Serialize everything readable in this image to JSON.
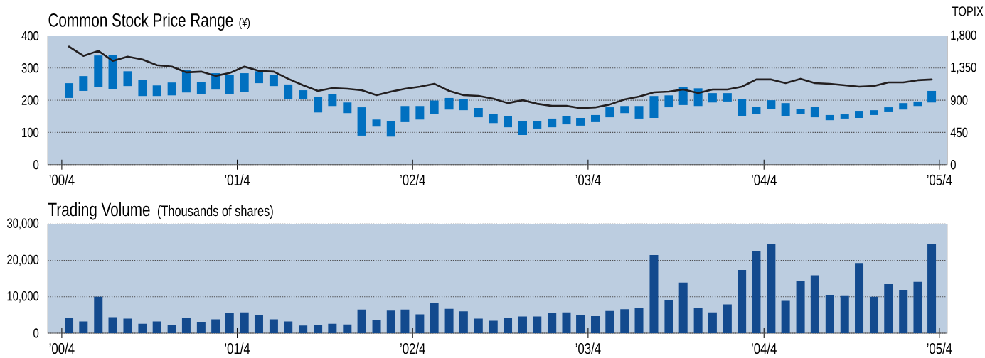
{
  "chart_data": [
    {
      "type": "bar",
      "title": "Common Stock Price Range",
      "ylabel": "(¥)",
      "y2label": "TOPIX",
      "x": [
        "2000-04-16",
        "2000-05-16",
        "2000-06-16",
        "2000-07-16",
        "2000-08-16",
        "2000-09-16",
        "2000-10-16",
        "2000-11-16",
        "2000-12-16",
        "2001-01-16",
        "2001-02-15",
        "2001-03-16",
        "2001-04-16",
        "2001-05-16",
        "2001-06-16",
        "2001-07-16",
        "2001-08-16",
        "2001-09-16",
        "2001-10-16",
        "2001-11-16",
        "2001-12-16",
        "2002-01-16",
        "2002-02-15",
        "2002-03-16",
        "2002-04-16",
        "2002-05-16",
        "2002-06-16",
        "2002-07-16",
        "2002-08-16",
        "2002-09-16",
        "2002-10-16",
        "2002-11-16",
        "2002-12-16",
        "2003-01-16",
        "2003-02-15",
        "2003-03-16",
        "2003-04-16",
        "2003-05-16",
        "2003-06-16",
        "2003-07-16",
        "2003-08-16",
        "2003-09-16",
        "2003-10-16",
        "2003-11-16",
        "2003-12-16",
        "2004-01-16",
        "2004-02-15",
        "2004-03-16",
        "2004-04-16",
        "2004-05-16",
        "2004-06-16",
        "2004-07-16",
        "2004-08-16",
        "2004-09-16",
        "2004-10-16",
        "2004-11-16",
        "2004-12-16",
        "2005-01-16",
        "2005-02-15",
        "2005-03-16"
      ],
      "xlim": [
        "2000-03-03",
        "2005-04-17"
      ],
      "xticks": [
        {
          "value": "2000-04-01",
          "label": "’00/4"
        },
        {
          "value": "2001-04-01",
          "label": "’01/4"
        },
        {
          "value": "2002-04-01",
          "label": "’02/4"
        },
        {
          "value": "2003-04-01",
          "label": "’03/4"
        },
        {
          "value": "2004-04-01",
          "label": "’04/4"
        },
        {
          "value": "2005-04-01",
          "label": "’05/4"
        }
      ],
      "ylim": [
        0,
        400
      ],
      "yticks": [
        0,
        100,
        200,
        300,
        400
      ],
      "y2lim": [
        0,
        1800
      ],
      "y2ticks": [
        0,
        450,
        900,
        {
          "value": 1350,
          "label": "1,350"
        },
        {
          "value": 1800,
          "label": "1,800"
        }
      ],
      "grid": "y",
      "series": [
        {
          "type": "bar",
          "color": "#0070c0",
          "base": [
            207,
            229,
            240,
            235,
            244,
            213,
            213,
            215,
            224,
            220,
            233,
            220,
            226,
            253,
            244,
            204,
            204,
            162,
            182,
            160,
            90,
            118,
            87,
            132,
            140,
            158,
            171,
            169,
            147,
            129,
            116,
            92,
            112,
            116,
            125,
            121,
            132,
            147,
            160,
            143,
            145,
            178,
            185,
            182,
            193,
            196,
            151,
            156,
            173,
            151,
            156,
            147,
            138,
            143,
            145,
            154,
            165,
            171,
            182,
            193
          ],
          "values": [
            46,
            46,
            99,
            106,
            46,
            51,
            33,
            40,
            69,
            37,
            51,
            59,
            58,
            37,
            35,
            45,
            27,
            47,
            36,
            33,
            88,
            22,
            49,
            50,
            42,
            41,
            36,
            35,
            29,
            29,
            35,
            42,
            22,
            27,
            26,
            24,
            22,
            31,
            22,
            39,
            68,
            37,
            57,
            55,
            29,
            26,
            53,
            24,
            27,
            40,
            17,
            33,
            16,
            13,
            22,
            15,
            13,
            20,
            14,
            36
          ]
        },
        {
          "type": "line",
          "axis": "y2",
          "color": "#231f20",
          "values": [
            1650,
            1520,
            1590,
            1450,
            1510,
            1470,
            1390,
            1370,
            1290,
            1300,
            1240,
            1280,
            1370,
            1310,
            1300,
            1200,
            1110,
            1030,
            1070,
            1060,
            1040,
            970,
            1020,
            1060,
            1090,
            1130,
            1030,
            970,
            960,
            920,
            860,
            900,
            850,
            820,
            820,
            790,
            800,
            840,
            910,
            950,
            1010,
            1020,
            1050,
            1000,
            1050,
            1050,
            1090,
            1190,
            1190,
            1140,
            1200,
            1140,
            1130,
            1110,
            1090,
            1100,
            1150,
            1150,
            1180,
            1190
          ]
        }
      ]
    },
    {
      "type": "bar",
      "title": "Trading Volume",
      "ylabel": "(Thousands of shares)",
      "x": [
        "2000-04-16",
        "2000-05-16",
        "2000-06-16",
        "2000-07-16",
        "2000-08-16",
        "2000-09-16",
        "2000-10-16",
        "2000-11-16",
        "2000-12-16",
        "2001-01-16",
        "2001-02-15",
        "2001-03-16",
        "2001-04-16",
        "2001-05-16",
        "2001-06-16",
        "2001-07-16",
        "2001-08-16",
        "2001-09-16",
        "2001-10-16",
        "2001-11-16",
        "2001-12-16",
        "2002-01-16",
        "2002-02-15",
        "2002-03-16",
        "2002-04-16",
        "2002-05-16",
        "2002-06-16",
        "2002-07-16",
        "2002-08-16",
        "2002-09-16",
        "2002-10-16",
        "2002-11-16",
        "2002-12-16",
        "2003-01-16",
        "2003-02-15",
        "2003-03-16",
        "2003-04-16",
        "2003-05-16",
        "2003-06-16",
        "2003-07-16",
        "2003-08-16",
        "2003-09-16",
        "2003-10-16",
        "2003-11-16",
        "2003-12-16",
        "2004-01-16",
        "2004-02-15",
        "2004-03-16",
        "2004-04-16",
        "2004-05-16",
        "2004-06-16",
        "2004-07-16",
        "2004-08-16",
        "2004-09-16",
        "2004-10-16",
        "2004-11-16",
        "2004-12-16",
        "2005-01-16",
        "2005-02-15",
        "2005-03-16"
      ],
      "xlim": [
        "2000-03-03",
        "2005-04-17"
      ],
      "xticks": [
        {
          "value": "2000-04-01",
          "label": "’00/4"
        },
        {
          "value": "2001-04-01",
          "label": "’01/4"
        },
        {
          "value": "2002-04-01",
          "label": "’02/4"
        },
        {
          "value": "2003-04-01",
          "label": "’03/4"
        },
        {
          "value": "2004-04-01",
          "label": "’04/4"
        },
        {
          "value": "2005-04-01",
          "label": "’05/4"
        }
      ],
      "ylim": [
        0,
        30000
      ],
      "yticks": [
        0,
        {
          "value": 10000,
          "label": "10,000"
        },
        {
          "value": 20000,
          "label": "20,000"
        },
        {
          "value": 30000,
          "label": "30,000"
        }
      ],
      "grid": "y",
      "color": "#134a8e",
      "values": [
        4200,
        3200,
        10000,
        4400,
        4000,
        2600,
        3200,
        2300,
        4300,
        3000,
        3800,
        5600,
        5700,
        5000,
        3800,
        3200,
        2100,
        2300,
        2600,
        2400,
        6500,
        3500,
        6200,
        6500,
        5200,
        8300,
        6700,
        6000,
        4000,
        3400,
        4100,
        4600,
        4600,
        5500,
        5700,
        4900,
        4700,
        6100,
        6600,
        7000,
        21500,
        9200,
        13900,
        7000,
        5700,
        7900,
        17400,
        22500,
        24600,
        8900,
        14300,
        15900,
        10400,
        10200,
        19300,
        10000,
        13500,
        11900,
        14100,
        24600
      ]
    }
  ]
}
